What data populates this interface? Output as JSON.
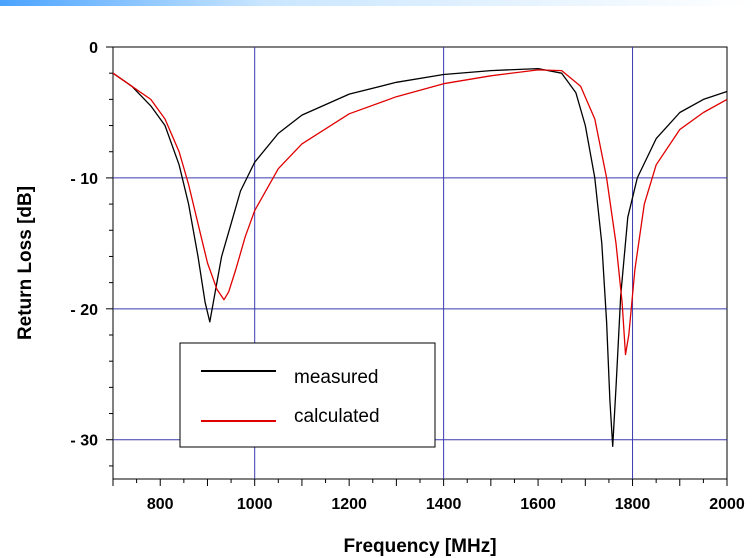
{
  "chart_data": {
    "type": "line",
    "title": "",
    "xlabel": "Frequency [MHz]",
    "ylabel": "Return Loss [dB]",
    "xlim": [
      700,
      2000
    ],
    "ylim": [
      -33,
      0
    ],
    "xticks": [
      800,
      1000,
      1200,
      1400,
      1600,
      1800,
      2000
    ],
    "xtick_labels": [
      "800",
      "1000",
      "1200",
      "1400",
      "1600",
      "1800",
      "2000"
    ],
    "yticks": [
      0,
      -10,
      -20,
      -30
    ],
    "ytick_labels": [
      "0",
      "- 10",
      "- 20",
      "- 30"
    ],
    "grid": true,
    "legend_position": "bottom-left",
    "series": [
      {
        "name": "measured",
        "color": "#000000",
        "x": [
          700,
          740,
          780,
          810,
          840,
          860,
          880,
          895,
          905,
          915,
          930,
          950,
          970,
          1000,
          1050,
          1100,
          1200,
          1300,
          1400,
          1500,
          1600,
          1650,
          1680,
          1700,
          1720,
          1735,
          1745,
          1752,
          1758,
          1765,
          1775,
          1790,
          1810,
          1850,
          1900,
          1950,
          2000
        ],
        "y": [
          -2,
          -3,
          -4.5,
          -6,
          -9,
          -12,
          -16,
          -19.5,
          -21,
          -19,
          -16,
          -13.5,
          -11,
          -8.8,
          -6.6,
          -5.2,
          -3.6,
          -2.7,
          -2.1,
          -1.8,
          -1.65,
          -2,
          -3.5,
          -6,
          -10,
          -15,
          -21,
          -27,
          -30.5,
          -26,
          -19,
          -13,
          -10,
          -7,
          -5,
          -4,
          -3.4
        ]
      },
      {
        "name": "calculated",
        "color": "#e00000",
        "x": [
          700,
          740,
          780,
          810,
          840,
          860,
          880,
          900,
          920,
          935,
          945,
          960,
          980,
          1000,
          1050,
          1100,
          1200,
          1300,
          1400,
          1500,
          1600,
          1650,
          1690,
          1720,
          1745,
          1765,
          1778,
          1785,
          1792,
          1805,
          1825,
          1850,
          1900,
          1950,
          2000
        ],
        "y": [
          -2,
          -3,
          -4,
          -5.5,
          -8,
          -10.5,
          -13.5,
          -16.5,
          -18.5,
          -19.3,
          -18.7,
          -17,
          -14.5,
          -12.5,
          -9.3,
          -7.4,
          -5.1,
          -3.8,
          -2.8,
          -2.2,
          -1.75,
          -1.8,
          -3,
          -5.5,
          -10,
          -15,
          -19.5,
          -23.5,
          -22,
          -17,
          -12,
          -9,
          -6.3,
          -5,
          -4
        ]
      }
    ]
  }
}
